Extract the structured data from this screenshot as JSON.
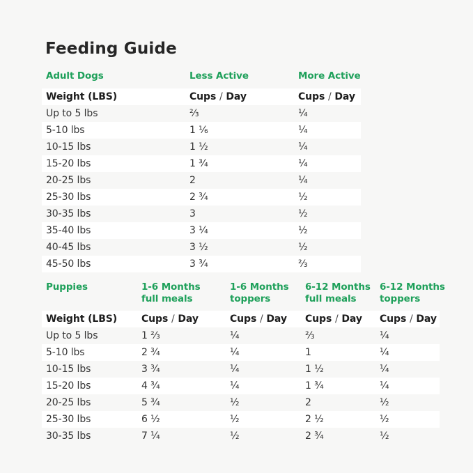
{
  "title": "Feeding Guide",
  "colors": {
    "accent_green": "#1ea05a",
    "background": "#f7f7f6",
    "row_white": "#ffffff",
    "text_dark": "#2e2e2e"
  },
  "adult_table": {
    "green_headers": [
      {
        "line1": "Adult Dogs"
      },
      {
        "line1": "Less Active"
      },
      {
        "line1": "More Active"
      }
    ],
    "weight_header": "Weight (LBS)",
    "cups_day_header": "Cups / Day",
    "rows": [
      {
        "weight": "Up to 5 lbs",
        "values": [
          "⅔",
          "¼"
        ]
      },
      {
        "weight": "5-10 lbs",
        "values": [
          "1 ⅙",
          "¼"
        ]
      },
      {
        "weight": "10-15 lbs",
        "values": [
          "1 ½",
          "¼"
        ]
      },
      {
        "weight": "15-20 lbs",
        "values": [
          "1 ¾",
          "¼"
        ]
      },
      {
        "weight": "20-25 lbs",
        "values": [
          "2",
          "¼"
        ]
      },
      {
        "weight": "25-30 lbs",
        "values": [
          "2 ¾",
          "½"
        ]
      },
      {
        "weight": "30-35 lbs",
        "values": [
          "3",
          "½"
        ]
      },
      {
        "weight": "35-40 lbs",
        "values": [
          "3 ¼",
          "½"
        ]
      },
      {
        "weight": "40-45 lbs",
        "values": [
          "3 ½",
          "½"
        ]
      },
      {
        "weight": "45-50 lbs",
        "values": [
          "3 ¾",
          "⅔"
        ]
      }
    ]
  },
  "puppies_table": {
    "green_headers": [
      {
        "line1": "Puppies"
      },
      {
        "line1": "1-6 Months",
        "line2": "full meals"
      },
      {
        "line1": "1-6 Months",
        "line2": "toppers"
      },
      {
        "line1": "6-12 Months",
        "line2": "full meals"
      },
      {
        "line1": "6-12 Months",
        "line2": "toppers"
      }
    ],
    "weight_header": "Weight (LBS)",
    "cups_day_header": "Cups / Day",
    "rows": [
      {
        "weight": "Up to 5 lbs",
        "values": [
          "1 ⅔",
          "¼",
          "⅔",
          "¼"
        ]
      },
      {
        "weight": "5-10 lbs",
        "values": [
          "2 ¾",
          "¼",
          "1",
          "¼"
        ]
      },
      {
        "weight": "10-15 lbs",
        "values": [
          "3 ¾",
          "¼",
          "1 ½",
          "¼"
        ]
      },
      {
        "weight": "15-20 lbs",
        "values": [
          "4 ¾",
          "¼",
          "1 ¾",
          "¼"
        ]
      },
      {
        "weight": "20-25 lbs",
        "values": [
          "5 ¾",
          "½",
          "2",
          "½"
        ]
      },
      {
        "weight": "25-30 lbs",
        "values": [
          "6 ½",
          "½",
          "2 ½",
          "½"
        ]
      },
      {
        "weight": "30-35 lbs",
        "values": [
          "7 ¼",
          "½",
          "2 ¾",
          "½"
        ]
      }
    ]
  }
}
